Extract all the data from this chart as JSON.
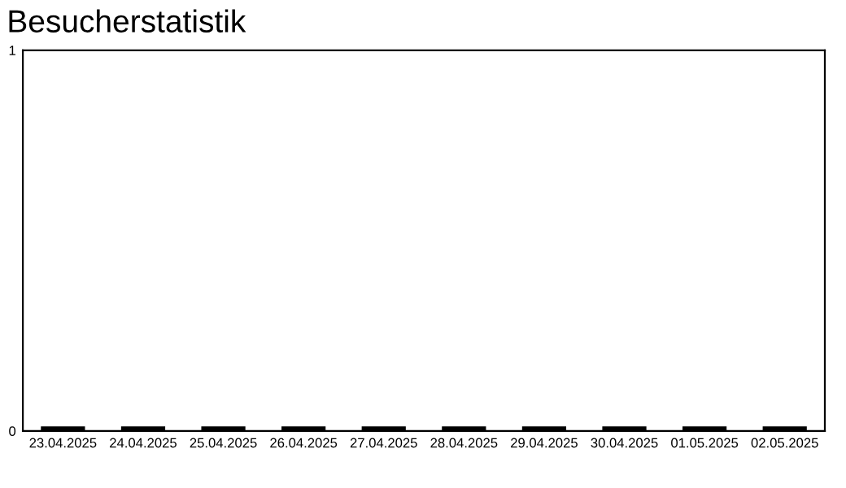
{
  "chart_data": {
    "type": "bar",
    "title": "Besucherstatistik",
    "categories": [
      "23.04.2025",
      "24.04.2025",
      "25.04.2025",
      "26.04.2025",
      "27.04.2025",
      "28.04.2025",
      "29.04.2025",
      "30.04.2025",
      "01.05.2025",
      "02.05.2025"
    ],
    "values": [
      0,
      0,
      0,
      0,
      0,
      0,
      0,
      0,
      0,
      0
    ],
    "color": "#000000",
    "ylim": [
      0,
      1
    ],
    "yticks": [
      0,
      1
    ],
    "grid": false
  }
}
